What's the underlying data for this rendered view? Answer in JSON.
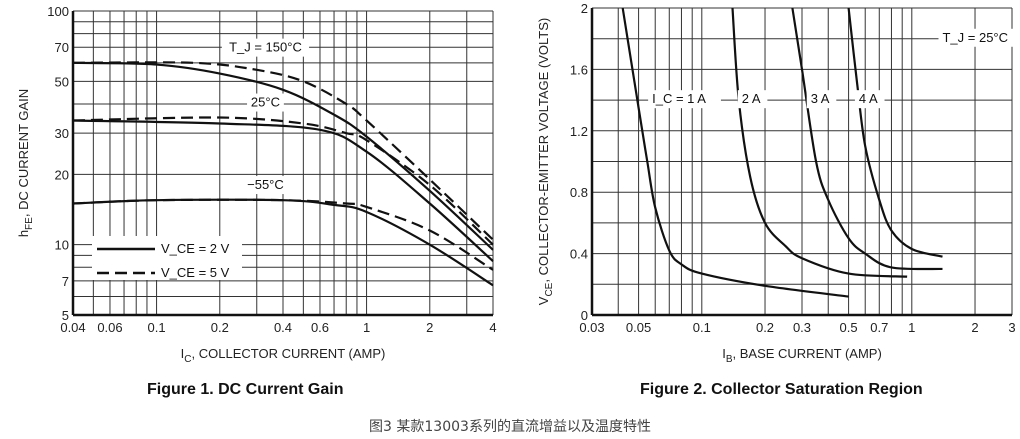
{
  "chart_data": [
    {
      "type": "line",
      "title": "Figure 1. DC Current Gain",
      "xlabel": "I_C, COLLECTOR CURRENT (AMP)",
      "ylabel": "h_FE, DC CURRENT GAIN",
      "xscale": "log",
      "yscale": "log",
      "xlim": [
        0.04,
        4
      ],
      "ylim": [
        5,
        100
      ],
      "xticks": [
        "0.04",
        "0.06",
        "0.1",
        "0.2",
        "0.4",
        "0.6",
        "1",
        "2",
        "4"
      ],
      "yticks": [
        "5",
        "7",
        "10",
        "20",
        "30",
        "50",
        "70",
        "100"
      ],
      "grid": true,
      "legend_placement": "bottom-left",
      "legend": [
        {
          "label": "V_CE = 2 V",
          "style": "solid"
        },
        {
          "label": "V_CE = 5 V",
          "style": "dashed"
        }
      ],
      "annotations": [
        "T_J = 150°C",
        "25°C",
        "−55°C"
      ],
      "series": [
        {
          "temp": "150°C",
          "vce": "5 V",
          "style": "dashed",
          "x": [
            0.04,
            0.15,
            0.3,
            0.5,
            0.8,
            1,
            2,
            4
          ],
          "y": [
            60,
            60,
            56,
            50,
            40,
            34,
            19,
            10.5
          ]
        },
        {
          "temp": "150°C",
          "vce": "2 V",
          "style": "solid",
          "x": [
            0.04,
            0.1,
            0.2,
            0.4,
            0.7,
            1,
            2,
            4
          ],
          "y": [
            60,
            59,
            54,
            46,
            36,
            29,
            17,
            9.5
          ]
        },
        {
          "temp": "25°C",
          "vce": "5 V",
          "style": "dashed",
          "x": [
            0.04,
            0.2,
            0.5,
            0.8,
            1,
            2,
            4
          ],
          "y": [
            34,
            35,
            33,
            30,
            28,
            18,
            10
          ]
        },
        {
          "temp": "25°C",
          "vce": "2 V",
          "style": "solid",
          "x": [
            0.04,
            0.2,
            0.6,
            1,
            2,
            4
          ],
          "y": [
            34,
            33,
            31,
            25,
            15,
            8.5
          ]
        },
        {
          "temp": "−55°C",
          "vce": "5 V",
          "style": "dashed",
          "x": [
            0.04,
            0.1,
            0.4,
            0.8,
            1,
            2,
            4
          ],
          "y": [
            15,
            15.5,
            15.5,
            15,
            14.5,
            11.5,
            7.8
          ]
        },
        {
          "temp": "−55°C",
          "vce": "2 V",
          "style": "solid",
          "x": [
            0.04,
            0.1,
            0.4,
            0.7,
            1,
            2,
            4
          ],
          "y": [
            15,
            15.5,
            15.5,
            14.8,
            13.8,
            10,
            6.7
          ]
        }
      ]
    },
    {
      "type": "line",
      "title": "Figure 2. Collector Saturation Region",
      "xlabel": "I_B, BASE CURRENT (AMP)",
      "ylabel": "V_CE, COLLECTOR-EMITTER VOLTAGE (VOLTS)",
      "xscale": "log",
      "yscale": "linear",
      "xlim": [
        0.03,
        3
      ],
      "ylim": [
        0,
        2
      ],
      "xticks": [
        "0.03",
        "0.05",
        "0.1",
        "0.2",
        "0.3",
        "0.5",
        "0.7",
        "1",
        "2",
        "3"
      ],
      "yticks": [
        "0",
        "0.4",
        "0.8",
        "1.2",
        "1.6",
        "2"
      ],
      "grid": true,
      "annotations": [
        "T_J = 25°C"
      ],
      "series": [
        {
          "name": "I_C = 1 A",
          "x": [
            0.042,
            0.05,
            0.055,
            0.06,
            0.07,
            0.08,
            0.1,
            0.2,
            0.5
          ],
          "y": [
            2,
            1.35,
            1.0,
            0.7,
            0.42,
            0.33,
            0.27,
            0.19,
            0.12
          ]
        },
        {
          "name": "2 A",
          "x": [
            0.14,
            0.15,
            0.17,
            0.2,
            0.25,
            0.3,
            0.5,
            0.95
          ],
          "y": [
            2,
            1.4,
            0.9,
            0.6,
            0.45,
            0.37,
            0.27,
            0.25
          ]
        },
        {
          "name": "3 A",
          "x": [
            0.27,
            0.3,
            0.35,
            0.4,
            0.5,
            0.6,
            0.8,
            1.4
          ],
          "y": [
            2,
            1.6,
            1.0,
            0.75,
            0.5,
            0.4,
            0.31,
            0.3
          ]
        },
        {
          "name": "4 A",
          "x": [
            0.5,
            0.55,
            0.6,
            0.7,
            0.8,
            1,
            1.4
          ],
          "y": [
            2,
            1.5,
            1.1,
            0.75,
            0.55,
            0.43,
            0.38
          ]
        }
      ]
    }
  ],
  "captions": {
    "fig1": "Figure 1. DC Current Gain",
    "fig2": "Figure 2. Collector Saturation Region",
    "footer": "图3 某款13003系列的直流增益以及温度特性"
  },
  "colors": {
    "ink": "#111111",
    "grid": "#333333"
  }
}
